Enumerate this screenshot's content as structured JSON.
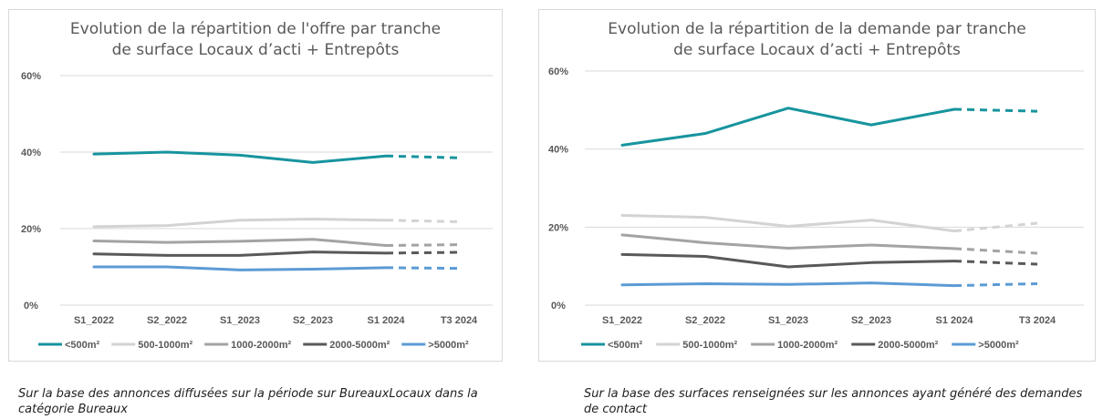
{
  "chart_data": [
    {
      "type": "line",
      "title_lines": [
        "Evolution de la répartition de l'offre par tranche",
        "de surface Locaux d’acti + Entrepôts"
      ],
      "categories": [
        "S1_2022",
        "S2_2022",
        "S1_2023",
        "S2_2023",
        "S1 2024",
        "T3 2024"
      ],
      "y_ticks": [
        "60%",
        "40%",
        "20%",
        "0%"
      ],
      "ylim": [
        0,
        60
      ],
      "grid": true,
      "legend_position": "bottom",
      "dashed_from_index": 4,
      "series": [
        {
          "name": "<500m²",
          "color": "#17949e",
          "values": [
            39.5,
            40.0,
            39.2,
            37.3,
            39.0,
            38.5
          ]
        },
        {
          "name": "500-1000m²",
          "color": "#d3d3d3",
          "values": [
            20.5,
            20.8,
            22.2,
            22.5,
            22.2,
            21.8
          ]
        },
        {
          "name": "1000-2000m²",
          "color": "#a3a3a3",
          "values": [
            16.8,
            16.4,
            16.7,
            17.2,
            15.6,
            15.8
          ]
        },
        {
          "name": "2000-5000m²",
          "color": "#595959",
          "values": [
            13.4,
            13.0,
            13.0,
            13.9,
            13.6,
            13.8
          ]
        },
        {
          "name": ">5000m²",
          "color": "#5b9bd5",
          "values": [
            10.0,
            10.0,
            9.2,
            9.4,
            9.8,
            9.6
          ]
        }
      ]
    },
    {
      "type": "line",
      "title_lines": [
        "Evolution de la répartition de la demande par tranche",
        "de surface Locaux d’acti + Entrepôts"
      ],
      "categories": [
        "S1_2022",
        "S2_2022",
        "S1_2023",
        "S2_2023",
        "S1 2024",
        "T3 2024"
      ],
      "y_ticks": [
        "60%",
        "40%",
        "20%",
        "0%"
      ],
      "ylim": [
        0,
        60
      ],
      "grid": true,
      "legend_position": "bottom",
      "dashed_from_index": 4,
      "series": [
        {
          "name": "<500m²",
          "color": "#17949e",
          "values": [
            41.0,
            44.0,
            50.5,
            46.2,
            50.2,
            49.7
          ]
        },
        {
          "name": "500-1000m²",
          "color": "#d3d3d3",
          "values": [
            23.0,
            22.5,
            20.2,
            21.8,
            19.0,
            21.0
          ]
        },
        {
          "name": "1000-2000m²",
          "color": "#a3a3a3",
          "values": [
            18.0,
            16.0,
            14.6,
            15.4,
            14.5,
            13.3
          ]
        },
        {
          "name": "2000-5000m²",
          "color": "#595959",
          "values": [
            13.0,
            12.5,
            9.8,
            10.9,
            11.3,
            10.5
          ]
        },
        {
          "name": ">5000m²",
          "color": "#5b9bd5",
          "values": [
            5.2,
            5.5,
            5.3,
            5.7,
            5.0,
            5.5
          ]
        }
      ]
    }
  ],
  "captions": {
    "left": "Sur la base des annonces diffusées sur la période sur BureauxLocaux dans la catégorie Bureaux",
    "right": "Sur la base des surfaces renseignées sur les annonces ayant généré des demandes de contact"
  }
}
